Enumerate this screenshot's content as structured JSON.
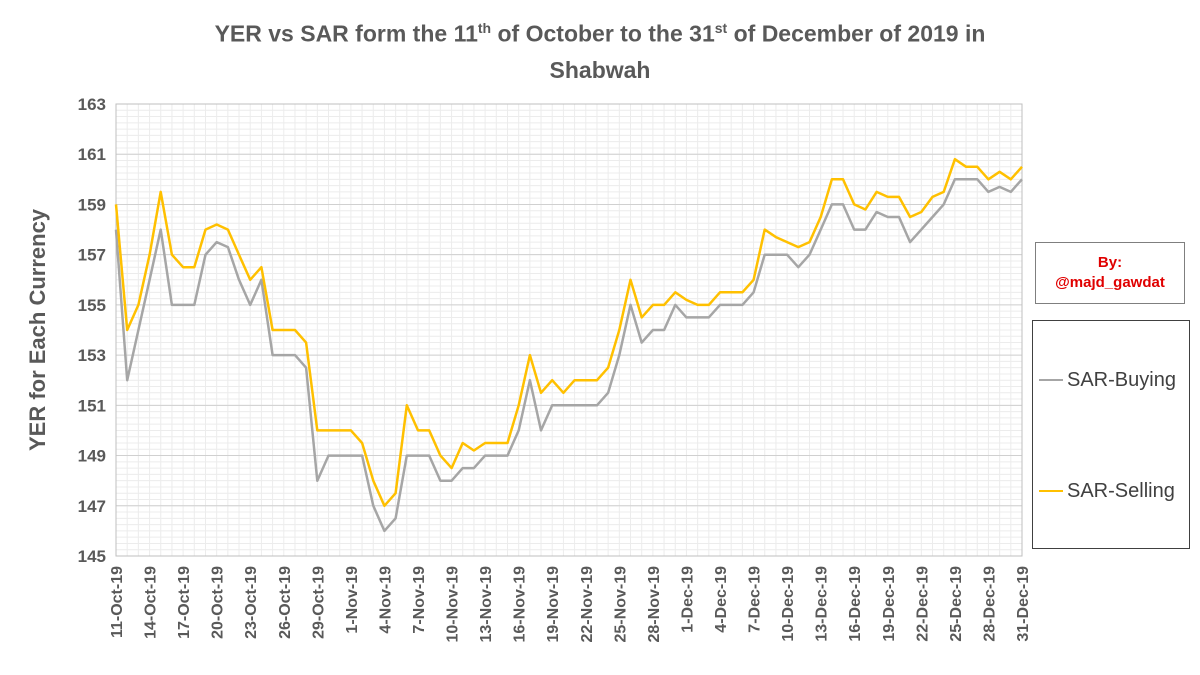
{
  "chart_data": {
    "type": "line",
    "title_main": "YER vs SAR form the 11",
    "title_sup1": "th",
    "title_mid": " of October to the 31",
    "title_sup2": "st",
    "title_end": " of December of 2019 in",
    "title_line2": "Shabwah",
    "ylabel": "YER for Each Currency",
    "xlabel": "",
    "ylim": [
      145,
      163
    ],
    "yticks": [
      145,
      147,
      149,
      151,
      153,
      155,
      157,
      159,
      161,
      163
    ],
    "grid": true,
    "legend_placement": "right",
    "x_tick_labels": [
      "11-Oct-19",
      "14-Oct-19",
      "17-Oct-19",
      "20-Oct-19",
      "23-Oct-19",
      "26-Oct-19",
      "29-Oct-19",
      "1-Nov-19",
      "4-Nov-19",
      "7-Nov-19",
      "10-Nov-19",
      "13-Nov-19",
      "16-Nov-19",
      "19-Nov-19",
      "22-Nov-19",
      "25-Nov-19",
      "28-Nov-19",
      "1-Dec-19",
      "4-Dec-19",
      "7-Dec-19",
      "10-Dec-19",
      "13-Dec-19",
      "16-Dec-19",
      "19-Dec-19",
      "22-Dec-19",
      "25-Dec-19",
      "28-Dec-19",
      "31-Dec-19"
    ],
    "x_tick_positions": [
      0,
      3,
      6,
      9,
      12,
      15,
      18,
      21,
      24,
      27,
      30,
      33,
      36,
      39,
      42,
      45,
      48,
      51,
      54,
      57,
      60,
      63,
      66,
      69,
      72,
      75,
      78,
      81
    ],
    "series": [
      {
        "name": "SAR-Buying",
        "color": "#a6a6a6",
        "values": [
          158,
          152,
          154,
          156,
          158,
          155,
          155,
          155,
          157,
          157.5,
          157.3,
          156,
          155,
          156,
          153,
          153,
          153,
          152.5,
          148,
          149,
          149,
          149,
          149,
          147,
          146,
          146.5,
          149,
          149,
          149,
          148,
          148,
          148.5,
          148.5,
          149,
          149,
          149,
          150,
          152,
          150,
          151,
          151,
          151,
          151,
          151,
          151.5,
          153,
          155,
          153.5,
          154,
          154,
          155,
          154.5,
          154.5,
          154.5,
          155,
          155,
          155,
          155.5,
          157,
          157,
          157,
          156.5,
          157,
          158,
          159,
          159,
          158,
          158,
          158.7,
          158.5,
          158.5,
          157.5,
          158,
          158.5,
          159,
          160,
          160,
          160,
          159.5,
          159.7,
          159.5,
          160
        ]
      },
      {
        "name": "SAR-Selling",
        "color": "#ffc000",
        "values": [
          159,
          154,
          155,
          157,
          159.5,
          157,
          156.5,
          156.5,
          158,
          158.2,
          158,
          157,
          156,
          156.5,
          154,
          154,
          154,
          153.5,
          150,
          150,
          150,
          150,
          149.5,
          148,
          147,
          147.5,
          151,
          150,
          150,
          149,
          148.5,
          149.5,
          149.2,
          149.5,
          149.5,
          149.5,
          151,
          153,
          151.5,
          152,
          151.5,
          152,
          152,
          152,
          152.5,
          154,
          156,
          154.5,
          155,
          155,
          155.5,
          155.2,
          155,
          155,
          155.5,
          155.5,
          155.5,
          156,
          158,
          157.7,
          157.5,
          157.3,
          157.5,
          158.5,
          160,
          160,
          159,
          158.8,
          159.5,
          159.3,
          159.3,
          158.5,
          158.7,
          159.3,
          159.5,
          160.8,
          160.5,
          160.5,
          160,
          160.3,
          160,
          160.5
        ]
      }
    ]
  },
  "credit": {
    "line1": "By:",
    "line2": "@majd_gawdat"
  }
}
